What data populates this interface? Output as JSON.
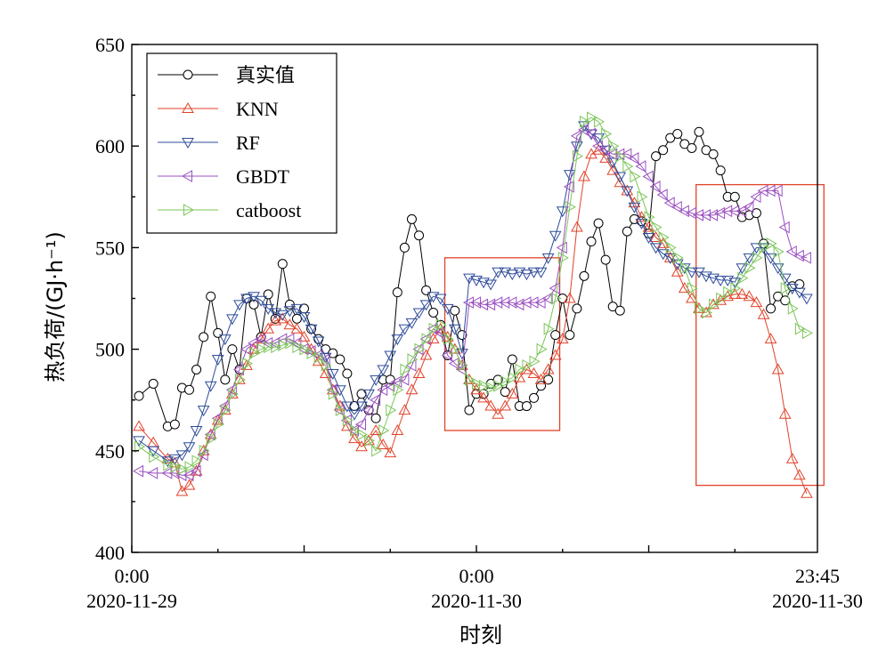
{
  "chart_data": {
    "type": "line",
    "title": "",
    "xlabel": "时刻",
    "ylabel": "热负荷/(GJ·h⁻¹)",
    "ylim": [
      400,
      650
    ],
    "yticks": [
      400,
      450,
      500,
      550,
      600,
      650
    ],
    "grid": false,
    "legend_position": "top-left",
    "x_range_hours": [
      0,
      47.75
    ],
    "x_tick_labels": [
      {
        "x": 0,
        "line1": "0:00",
        "line2": "2020-11-29"
      },
      {
        "x": 24,
        "line1": "0:00",
        "line2": "2020-11-30"
      },
      {
        "x": 47.75,
        "line1": "23:45",
        "line2": "2020-11-30"
      }
    ],
    "highlight_boxes": [
      {
        "x0": 21.8,
        "x1": 29.8,
        "y0": 460,
        "y1": 545,
        "color": "#e2422a"
      },
      {
        "x0": 39.3,
        "x1": 48.2,
        "y0": 433,
        "y1": 581,
        "color": "#e2422a"
      }
    ],
    "series": [
      {
        "name": "真实值",
        "color": "#000000",
        "marker": "circle",
        "x": [
          0.5,
          1.5,
          2.5,
          3.0,
          3.5,
          4.0,
          4.5,
          5.0,
          5.5,
          6.0,
          6.5,
          7.0,
          7.5,
          8.0,
          8.5,
          9.0,
          9.5,
          10.0,
          10.5,
          11.0,
          11.5,
          12.0,
          12.5,
          13.0,
          13.5,
          14.0,
          14.5,
          15.0,
          15.5,
          16.0,
          16.5,
          17.0,
          17.5,
          18.0,
          18.5,
          19.0,
          19.5,
          20.0,
          20.5,
          21.0,
          21.5,
          22.0,
          22.5,
          23.0,
          23.5,
          24.0,
          24.5,
          25.0,
          25.5,
          26.0,
          26.5,
          27.0,
          27.5,
          28.0,
          28.5,
          29.0,
          29.5,
          30.0,
          30.5,
          31.0,
          31.5,
          32.0,
          32.5,
          33.0,
          33.5,
          34.0,
          34.5,
          35.0,
          35.5,
          36.0,
          36.5,
          37.0,
          37.5,
          38.0,
          38.5,
          39.0,
          39.5,
          40.0,
          40.5,
          41.0,
          41.5,
          42.0,
          42.5,
          43.0,
          43.5,
          44.0,
          44.5,
          45.0,
          45.5,
          46.0,
          46.5
        ],
        "y": [
          477,
          483,
          462,
          463,
          481,
          480,
          490,
          506,
          526,
          508,
          485,
          500,
          490,
          525,
          522,
          506,
          527,
          515,
          542,
          522,
          515,
          520,
          510,
          505,
          500,
          498,
          495,
          488,
          472,
          478,
          470,
          466,
          485,
          485,
          528,
          550,
          564,
          556,
          529,
          518,
          512,
          497,
          519,
          507,
          470,
          478,
          478,
          483,
          485,
          479,
          495,
          472,
          472,
          476,
          482,
          485,
          507,
          525,
          507,
          520,
          536,
          553,
          562,
          544,
          521,
          519,
          558,
          564,
          563,
          557,
          595,
          598,
          604,
          606,
          601,
          599,
          607,
          598,
          596,
          588,
          575,
          575,
          565,
          566,
          567,
          552,
          520,
          526,
          524,
          531,
          532
        ]
      },
      {
        "name": "KNN",
        "color": "#e2422a",
        "marker": "triangle-up",
        "x": [
          0.5,
          1.5,
          2.5,
          3.0,
          3.5,
          4.0,
          4.5,
          5.0,
          5.5,
          6.0,
          6.5,
          7.0,
          7.5,
          8.0,
          8.5,
          9.0,
          9.5,
          10.0,
          10.5,
          11.0,
          11.5,
          12.0,
          12.5,
          13.0,
          13.5,
          14.0,
          14.5,
          15.0,
          15.5,
          16.0,
          16.5,
          17.0,
          17.5,
          18.0,
          18.5,
          19.0,
          19.5,
          20.0,
          20.5,
          21.0,
          21.5,
          22.0,
          22.5,
          23.0,
          23.5,
          24.0,
          24.5,
          25.0,
          25.5,
          26.0,
          26.5,
          27.0,
          27.5,
          28.0,
          28.5,
          29.0,
          29.5,
          30.0,
          30.5,
          31.0,
          31.5,
          32.0,
          32.5,
          33.0,
          33.5,
          34.0,
          34.5,
          35.0,
          35.5,
          36.0,
          36.5,
          37.0,
          37.5,
          38.0,
          38.5,
          39.0,
          39.5,
          40.0,
          40.5,
          41.0,
          41.5,
          42.0,
          42.5,
          43.0,
          43.5,
          44.0,
          44.5,
          45.0,
          45.5,
          46.0,
          46.5,
          47.0
        ],
        "y": [
          462,
          454,
          446,
          444,
          430,
          433,
          440,
          450,
          458,
          465,
          470,
          478,
          485,
          492,
          500,
          505,
          510,
          514,
          515,
          512,
          510,
          506,
          500,
          494,
          488,
          480,
          472,
          462,
          456,
          452,
          455,
          460,
          453,
          449,
          460,
          470,
          480,
          488,
          497,
          505,
          510,
          506,
          500,
          492,
          485,
          480,
          476,
          472,
          468,
          472,
          478,
          486,
          490,
          488,
          485,
          490,
          497,
          505,
          525,
          560,
          585,
          596,
          598,
          594,
          588,
          582,
          578,
          572,
          565,
          560,
          555,
          552,
          545,
          538,
          530,
          525,
          520,
          518,
          522,
          524,
          526,
          527,
          527,
          526,
          523,
          517,
          505,
          490,
          468,
          446,
          438,
          429
        ]
      },
      {
        "name": "RF",
        "color": "#2f4c9a",
        "marker": "triangle-down",
        "x": [
          0.5,
          1.5,
          2.5,
          3.0,
          3.5,
          4.0,
          4.5,
          5.0,
          5.5,
          6.0,
          6.5,
          7.0,
          7.5,
          8.0,
          8.5,
          9.0,
          9.5,
          10.0,
          10.5,
          11.0,
          11.5,
          12.0,
          12.5,
          13.0,
          13.5,
          14.0,
          14.5,
          15.0,
          15.5,
          16.0,
          16.5,
          17.0,
          17.5,
          18.0,
          18.5,
          19.0,
          19.5,
          20.0,
          20.5,
          21.0,
          21.5,
          22.0,
          22.5,
          23.0,
          23.5,
          24.0,
          24.5,
          25.0,
          25.5,
          26.0,
          26.5,
          27.0,
          27.5,
          28.0,
          28.5,
          29.0,
          29.5,
          30.0,
          30.5,
          31.0,
          31.5,
          32.0,
          32.5,
          33.0,
          33.5,
          34.0,
          34.5,
          35.0,
          35.5,
          36.0,
          36.5,
          37.0,
          37.5,
          38.0,
          38.5,
          39.0,
          39.5,
          40.0,
          40.5,
          41.0,
          41.5,
          42.0,
          42.5,
          43.0,
          43.5,
          44.0,
          44.5,
          45.0,
          45.5,
          46.0,
          46.5,
          47.0
        ],
        "y": [
          455,
          450,
          445,
          446,
          448,
          452,
          460,
          470,
          482,
          495,
          505,
          515,
          522,
          525,
          526,
          524,
          520,
          518,
          517,
          519,
          520,
          516,
          510,
          504,
          496,
          488,
          480,
          472,
          468,
          472,
          478,
          485,
          490,
          497,
          505,
          510,
          513,
          518,
          522,
          526,
          525,
          520,
          510,
          498,
          535,
          534,
          533,
          532,
          538,
          538,
          537,
          538,
          537,
          538,
          538,
          545,
          556,
          568,
          586,
          600,
          610,
          606,
          604,
          598,
          592,
          585,
          578,
          570,
          562,
          555,
          550,
          547,
          545,
          542,
          540,
          538,
          538,
          536,
          535,
          534,
          534,
          533,
          540,
          545,
          550,
          550,
          545,
          540,
          535,
          530,
          528,
          525
        ]
      },
      {
        "name": "GBDT",
        "color": "#9b4fc0",
        "marker": "triangle-left",
        "x": [
          0.5,
          1.5,
          2.5,
          3.0,
          3.5,
          4.0,
          4.5,
          5.0,
          5.5,
          6.0,
          6.5,
          7.0,
          7.5,
          8.0,
          8.5,
          9.0,
          9.5,
          10.0,
          10.5,
          11.0,
          11.5,
          12.0,
          12.5,
          13.0,
          13.5,
          14.0,
          14.5,
          15.0,
          15.5,
          16.0,
          16.5,
          17.0,
          17.5,
          18.0,
          18.5,
          19.0,
          19.5,
          20.0,
          20.5,
          21.0,
          21.5,
          22.0,
          22.5,
          23.0,
          23.5,
          24.0,
          24.5,
          25.0,
          25.5,
          26.0,
          26.5,
          27.0,
          27.5,
          28.0,
          28.5,
          29.0,
          29.5,
          30.0,
          30.5,
          31.0,
          31.5,
          32.0,
          32.5,
          33.0,
          33.5,
          34.0,
          34.5,
          35.0,
          35.5,
          36.0,
          36.5,
          37.0,
          37.5,
          38.0,
          38.5,
          39.0,
          39.5,
          40.0,
          40.5,
          41.0,
          41.5,
          42.0,
          42.5,
          43.0,
          43.5,
          44.0,
          44.5,
          45.0,
          45.5,
          46.0,
          46.5,
          47.0
        ],
        "y": [
          440,
          439,
          439,
          439,
          438,
          438,
          440,
          448,
          458,
          466,
          472,
          480,
          490,
          500,
          503,
          505,
          503,
          503,
          505,
          505,
          503,
          500,
          499,
          497,
          495,
          480,
          470,
          465,
          460,
          463,
          470,
          475,
          480,
          482,
          484,
          485,
          492,
          500,
          505,
          510,
          508,
          497,
          493,
          490,
          523,
          523,
          522,
          522,
          523,
          523,
          523,
          522,
          523,
          523,
          523,
          525,
          530,
          550,
          580,
          605,
          608,
          606,
          600,
          598,
          596,
          596,
          596,
          594,
          590,
          585,
          580,
          576,
          572,
          570,
          568,
          567,
          566,
          566,
          566,
          567,
          568,
          568,
          568,
          570,
          575,
          578,
          578,
          578,
          560,
          548,
          546,
          545
        ]
      },
      {
        "name": "catboost",
        "color": "#7cc65a",
        "marker": "triangle-right",
        "x": [
          0.5,
          1.5,
          2.5,
          3.0,
          3.5,
          4.0,
          4.5,
          5.0,
          5.5,
          6.0,
          6.5,
          7.0,
          7.5,
          8.0,
          8.5,
          9.0,
          9.5,
          10.0,
          10.5,
          11.0,
          11.5,
          12.0,
          12.5,
          13.0,
          13.5,
          14.0,
          14.5,
          15.0,
          15.5,
          16.0,
          16.5,
          17.0,
          17.5,
          18.0,
          18.5,
          19.0,
          19.5,
          20.0,
          20.5,
          21.0,
          21.5,
          22.0,
          22.5,
          23.0,
          23.5,
          24.0,
          24.5,
          25.0,
          25.5,
          26.0,
          26.5,
          27.0,
          27.5,
          28.0,
          28.5,
          29.0,
          29.5,
          30.0,
          30.5,
          31.0,
          31.5,
          32.0,
          32.5,
          33.0,
          33.5,
          34.0,
          34.5,
          35.0,
          35.5,
          36.0,
          36.5,
          37.0,
          37.5,
          38.0,
          38.5,
          39.0,
          39.5,
          40.0,
          40.5,
          41.0,
          41.5,
          42.0,
          42.5,
          43.0,
          43.5,
          44.0,
          44.5,
          45.0,
          45.5,
          46.0,
          46.5,
          47.0
        ],
        "y": [
          452,
          447,
          443,
          442,
          441,
          442,
          445,
          450,
          456,
          463,
          470,
          478,
          485,
          493,
          498,
          500,
          501,
          501,
          502,
          503,
          501,
          500,
          498,
          496,
          492,
          478,
          470,
          465,
          460,
          458,
          455,
          450,
          460,
          470,
          480,
          490,
          495,
          500,
          505,
          510,
          512,
          505,
          500,
          492,
          485,
          483,
          482,
          481,
          482,
          484,
          486,
          490,
          492,
          494,
          500,
          510,
          525,
          545,
          570,
          595,
          612,
          614,
          612,
          606,
          600,
          595,
          590,
          585,
          575,
          565,
          560,
          555,
          550,
          545,
          540,
          530,
          520,
          518,
          522,
          525,
          528,
          530,
          535,
          540,
          545,
          550,
          552,
          548,
          530,
          520,
          510,
          508
        ]
      }
    ]
  }
}
